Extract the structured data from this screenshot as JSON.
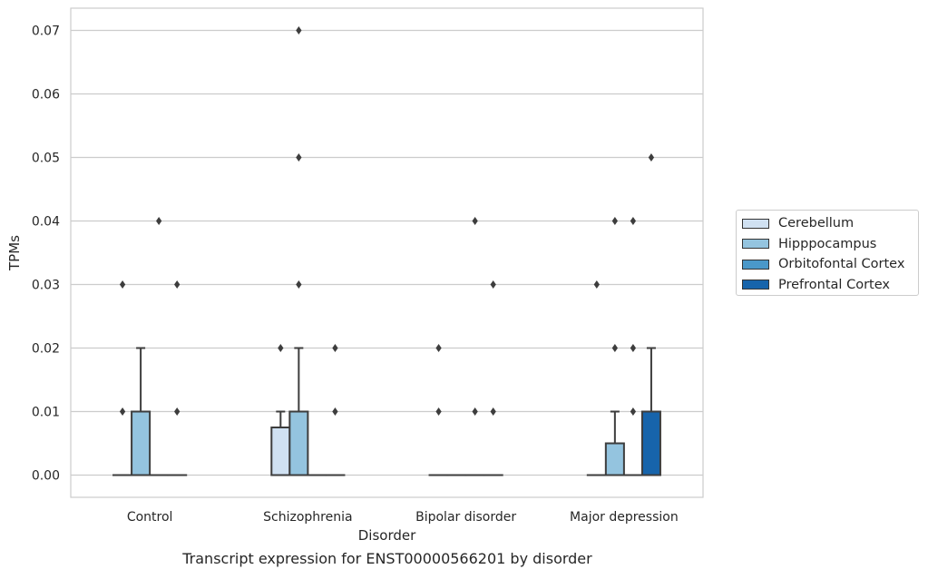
{
  "caption": "Transcript expression for ENST00000566201 by disorder",
  "chart_data": {
    "type": "box",
    "xlabel": "Disorder",
    "ylabel": "TPMs",
    "categories": [
      "Control",
      "Schizophrenia",
      "Bipolar disorder",
      "Major depression"
    ],
    "ylim": [
      -0.0035,
      0.0735
    ],
    "yticks": [
      0.0,
      0.01,
      0.02,
      0.03,
      0.04,
      0.05,
      0.06,
      0.07
    ],
    "ytick_labels": [
      "0.00",
      "0.01",
      "0.02",
      "0.03",
      "0.04",
      "0.05",
      "0.06",
      "0.07"
    ],
    "grid": "horizontal",
    "legend_position": "right",
    "series": [
      {
        "name": "Cerebellum",
        "color": "#d0e1f2",
        "boxes": [
          {
            "q1": 0,
            "median": 0,
            "q3": 0,
            "whislo": 0,
            "whishi": 0,
            "fliers": [
              0.01,
              0.03
            ]
          },
          {
            "q1": 0,
            "median": 0.0075,
            "q3": 0.0075,
            "whislo": 0,
            "whishi": 0.01,
            "fliers": [
              0.02
            ]
          },
          {
            "q1": 0,
            "median": 0,
            "q3": 0,
            "whislo": 0,
            "whishi": 0,
            "fliers": [
              0.01,
              0.02
            ]
          },
          {
            "q1": 0,
            "median": 0,
            "q3": 0,
            "whislo": 0,
            "whishi": 0,
            "fliers": [
              0.03
            ]
          }
        ]
      },
      {
        "name": "Hipppocampus",
        "color": "#94c4df",
        "boxes": [
          {
            "q1": 0,
            "median": 0.01,
            "q3": 0.01,
            "whislo": 0,
            "whishi": 0.02,
            "fliers": []
          },
          {
            "q1": 0,
            "median": 0.01,
            "q3": 0.01,
            "whislo": 0,
            "whishi": 0.02,
            "fliers": [
              0.03,
              0.05,
              0.07
            ]
          },
          {
            "q1": 0,
            "median": 0,
            "q3": 0,
            "whislo": 0,
            "whishi": 0,
            "fliers": []
          },
          {
            "q1": 0,
            "median": 0,
            "q3": 0.005,
            "whislo": 0,
            "whishi": 0.01,
            "fliers": [
              0.02,
              0.04
            ]
          }
        ]
      },
      {
        "name": "Orbitofontal Cortex",
        "color": "#4a98c9",
        "boxes": [
          {
            "q1": 0,
            "median": 0,
            "q3": 0,
            "whislo": 0,
            "whishi": 0,
            "fliers": [
              0.04
            ]
          },
          {
            "q1": 0,
            "median": 0,
            "q3": 0,
            "whislo": 0,
            "whishi": 0,
            "fliers": []
          },
          {
            "q1": 0,
            "median": 0,
            "q3": 0,
            "whislo": 0,
            "whishi": 0,
            "fliers": [
              0.01,
              0.04
            ]
          },
          {
            "q1": 0,
            "median": 0,
            "q3": 0,
            "whislo": 0,
            "whishi": 0,
            "fliers": [
              0.01,
              0.02,
              0.04
            ]
          }
        ]
      },
      {
        "name": "Prefrontal Cortex",
        "color": "#1764ab",
        "boxes": [
          {
            "q1": 0,
            "median": 0,
            "q3": 0,
            "whislo": 0,
            "whishi": 0,
            "fliers": [
              0.01,
              0.03
            ]
          },
          {
            "q1": 0,
            "median": 0,
            "q3": 0,
            "whislo": 0,
            "whishi": 0,
            "fliers": [
              0.01,
              0.02
            ]
          },
          {
            "q1": 0,
            "median": 0,
            "q3": 0,
            "whislo": 0,
            "whishi": 0,
            "fliers": [
              0.01,
              0.03
            ]
          },
          {
            "q1": 0,
            "median": 0,
            "q3": 0.01,
            "whislo": 0,
            "whishi": 0.02,
            "fliers": [
              0.05
            ]
          }
        ]
      }
    ]
  }
}
